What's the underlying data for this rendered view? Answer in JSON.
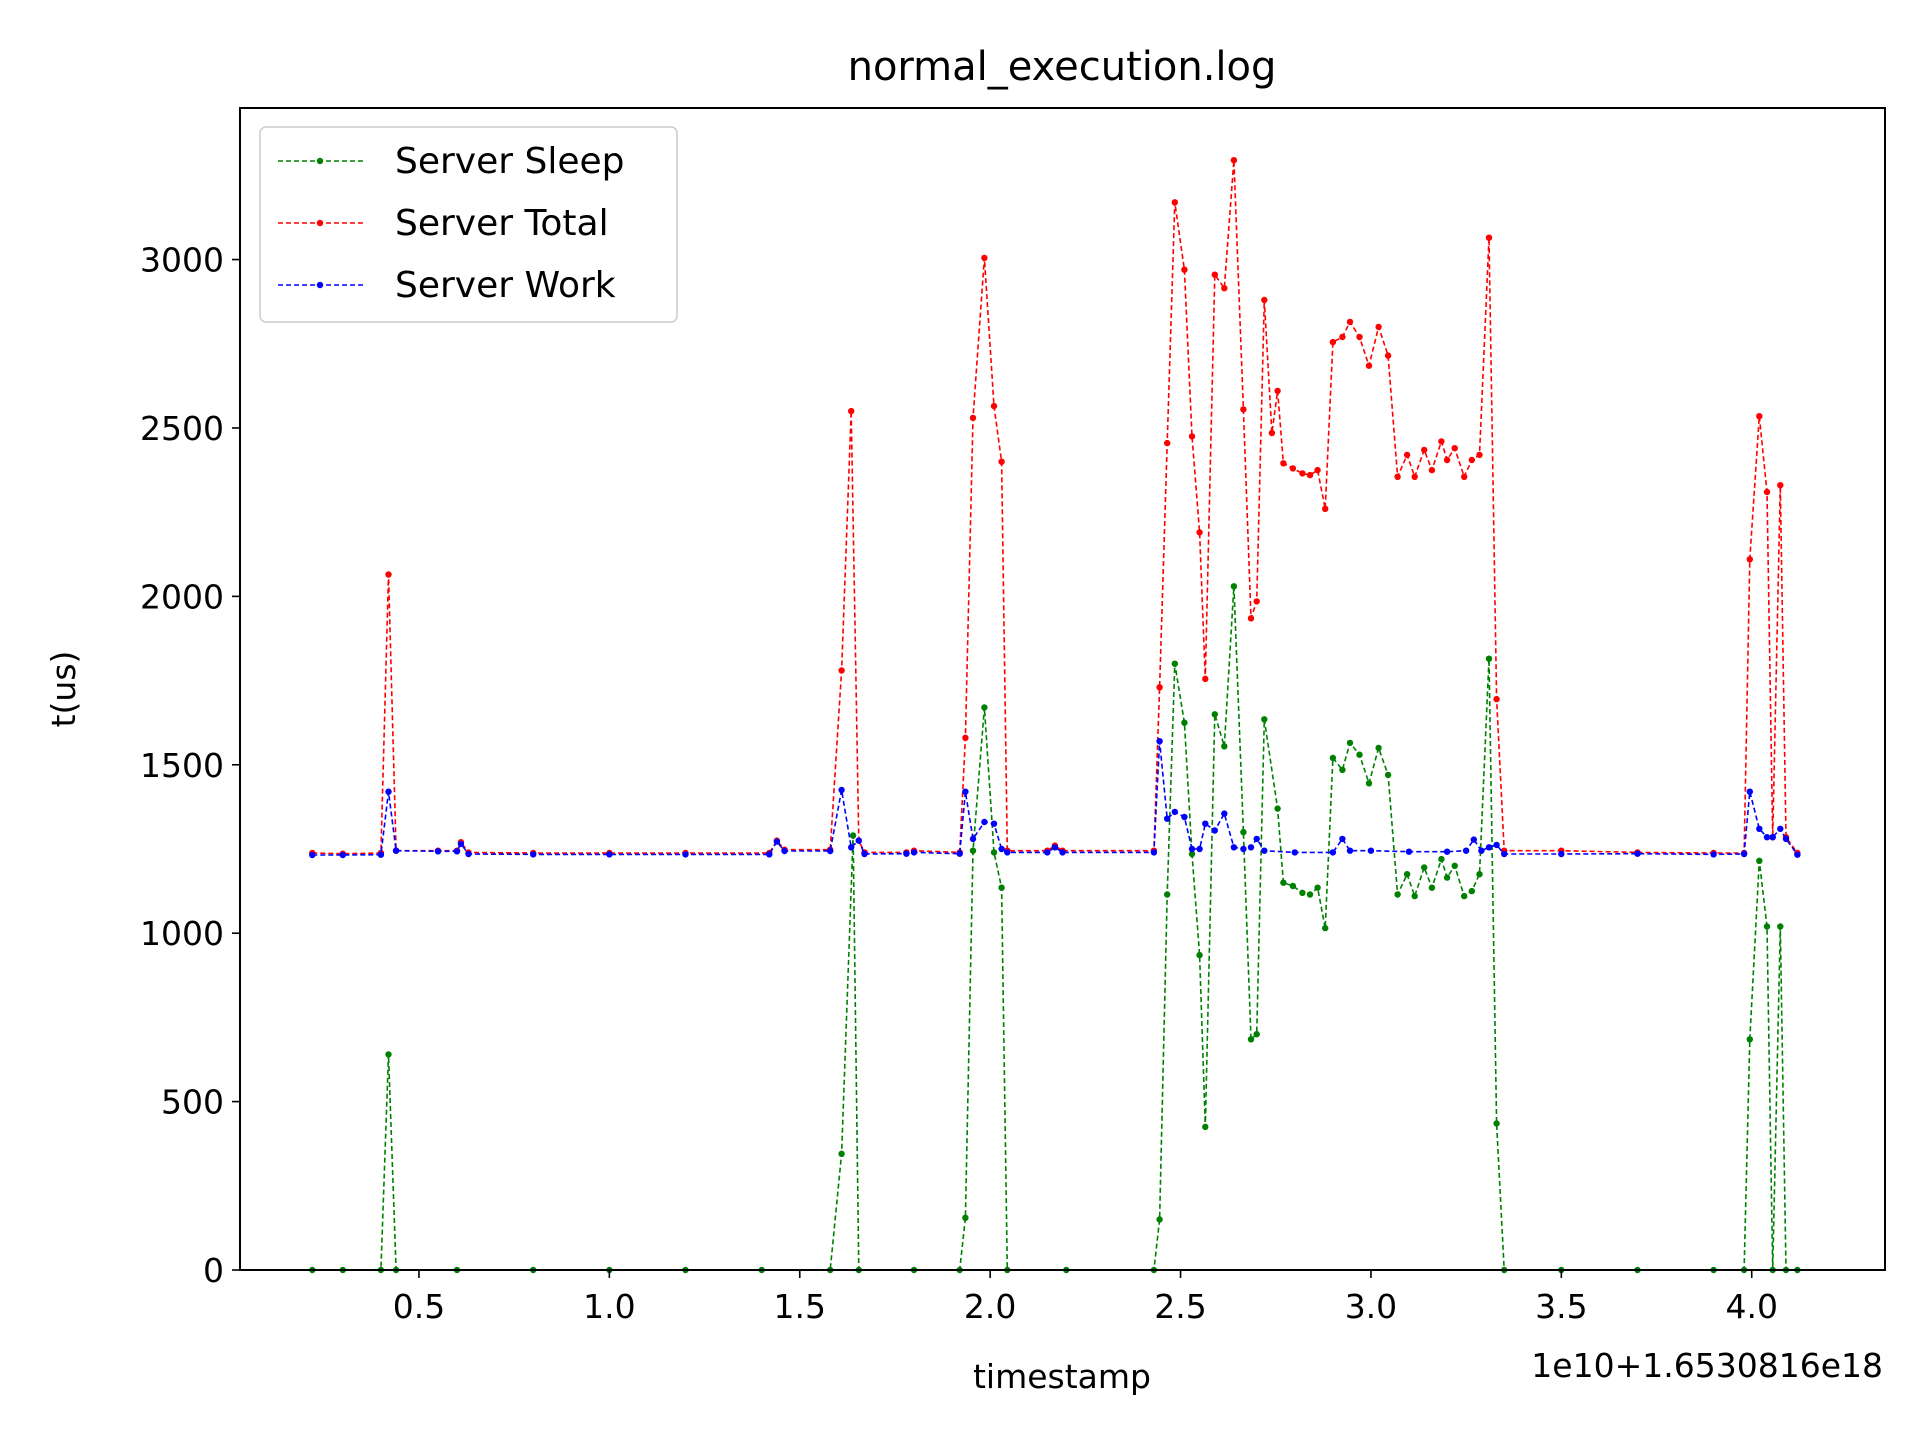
{
  "chart_data": {
    "type": "line",
    "title": "normal_execution.log",
    "xlabel": "timestamp",
    "ylabel": "t(us)",
    "x_offset_label": "1e10+1.6530816e18",
    "xlim": [
      0.03,
      4.35
    ],
    "ylim": [
      0,
      3450
    ],
    "x_ticks": [
      0.5,
      1.0,
      1.5,
      2.0,
      2.5,
      3.0,
      3.5,
      4.0
    ],
    "x_tick_labels": [
      "0.5",
      "1.0",
      "1.5",
      "2.0",
      "2.5",
      "3.0",
      "3.5",
      "4.0"
    ],
    "y_ticks": [
      0,
      500,
      1000,
      1500,
      2000,
      2500,
      3000
    ],
    "y_tick_labels": [
      "0",
      "500",
      "1000",
      "1500",
      "2000",
      "2500",
      "3000"
    ],
    "grid": false,
    "legend_position": "top-left",
    "series": [
      {
        "name": "Server Sleep",
        "color": "#008000",
        "line_style": "dashed",
        "points": [
          [
            0.22,
            0
          ],
          [
            0.3,
            0
          ],
          [
            0.4,
            0
          ],
          [
            0.42,
            640
          ],
          [
            0.44,
            0
          ],
          [
            0.6,
            0
          ],
          [
            0.8,
            0
          ],
          [
            1.0,
            0
          ],
          [
            1.2,
            0
          ],
          [
            1.4,
            0
          ],
          [
            1.58,
            0
          ],
          [
            1.61,
            345
          ],
          [
            1.64,
            1290
          ],
          [
            1.655,
            0
          ],
          [
            1.8,
            0
          ],
          [
            1.92,
            0
          ],
          [
            1.935,
            155
          ],
          [
            1.955,
            1245
          ],
          [
            1.985,
            1670
          ],
          [
            2.01,
            1240
          ],
          [
            2.03,
            1135
          ],
          [
            2.045,
            0
          ],
          [
            2.2,
            0
          ],
          [
            2.43,
            0
          ],
          [
            2.445,
            150
          ],
          [
            2.465,
            1115
          ],
          [
            2.485,
            1800
          ],
          [
            2.51,
            1625
          ],
          [
            2.53,
            1235
          ],
          [
            2.55,
            935
          ],
          [
            2.565,
            425
          ],
          [
            2.59,
            1650
          ],
          [
            2.615,
            1555
          ],
          [
            2.64,
            2030
          ],
          [
            2.665,
            1300
          ],
          [
            2.685,
            685
          ],
          [
            2.7,
            700
          ],
          [
            2.72,
            1635
          ],
          [
            2.755,
            1370
          ],
          [
            2.77,
            1150
          ],
          [
            2.795,
            1140
          ],
          [
            2.82,
            1120
          ],
          [
            2.84,
            1115
          ],
          [
            2.86,
            1135
          ],
          [
            2.88,
            1015
          ],
          [
            2.9,
            1520
          ],
          [
            2.925,
            1485
          ],
          [
            2.945,
            1565
          ],
          [
            2.97,
            1530
          ],
          [
            2.995,
            1445
          ],
          [
            3.02,
            1550
          ],
          [
            3.045,
            1470
          ],
          [
            3.07,
            1115
          ],
          [
            3.095,
            1175
          ],
          [
            3.115,
            1110
          ],
          [
            3.14,
            1195
          ],
          [
            3.16,
            1135
          ],
          [
            3.185,
            1220
          ],
          [
            3.2,
            1165
          ],
          [
            3.22,
            1200
          ],
          [
            3.245,
            1110
          ],
          [
            3.265,
            1125
          ],
          [
            3.285,
            1175
          ],
          [
            3.31,
            1815
          ],
          [
            3.33,
            435
          ],
          [
            3.35,
            0
          ],
          [
            3.5,
            0
          ],
          [
            3.7,
            0
          ],
          [
            3.9,
            0
          ],
          [
            3.98,
            0
          ],
          [
            3.995,
            685
          ],
          [
            4.02,
            1215
          ],
          [
            4.04,
            1020
          ],
          [
            4.055,
            0
          ],
          [
            4.075,
            1020
          ],
          [
            4.09,
            0
          ],
          [
            4.12,
            0
          ]
        ]
      },
      {
        "name": "Server Total",
        "color": "#ff0000",
        "line_style": "dashed",
        "points": [
          [
            0.22,
            1238
          ],
          [
            0.3,
            1236
          ],
          [
            0.4,
            1238
          ],
          [
            0.42,
            2065
          ],
          [
            0.44,
            1245
          ],
          [
            0.55,
            1245
          ],
          [
            0.6,
            1245
          ],
          [
            0.61,
            1270
          ],
          [
            0.63,
            1240
          ],
          [
            0.8,
            1238
          ],
          [
            1.0,
            1238
          ],
          [
            1.2,
            1238
          ],
          [
            1.42,
            1238
          ],
          [
            1.44,
            1275
          ],
          [
            1.46,
            1248
          ],
          [
            1.58,
            1248
          ],
          [
            1.61,
            1780
          ],
          [
            1.635,
            2550
          ],
          [
            1.655,
            1275
          ],
          [
            1.67,
            1240
          ],
          [
            1.78,
            1240
          ],
          [
            1.8,
            1245
          ],
          [
            1.92,
            1240
          ],
          [
            1.935,
            1580
          ],
          [
            1.955,
            2530
          ],
          [
            1.985,
            3005
          ],
          [
            2.01,
            2565
          ],
          [
            2.03,
            2400
          ],
          [
            2.045,
            1245
          ],
          [
            2.15,
            1245
          ],
          [
            2.17,
            1260
          ],
          [
            2.19,
            1245
          ],
          [
            2.43,
            1245
          ],
          [
            2.445,
            1730
          ],
          [
            2.465,
            2455
          ],
          [
            2.485,
            3170
          ],
          [
            2.51,
            2970
          ],
          [
            2.53,
            2475
          ],
          [
            2.55,
            2190
          ],
          [
            2.565,
            1755
          ],
          [
            2.59,
            2955
          ],
          [
            2.615,
            2915
          ],
          [
            2.64,
            3295
          ],
          [
            2.665,
            2555
          ],
          [
            2.685,
            1935
          ],
          [
            2.7,
            1985
          ],
          [
            2.72,
            2880
          ],
          [
            2.74,
            2485
          ],
          [
            2.755,
            2610
          ],
          [
            2.77,
            2395
          ],
          [
            2.795,
            2380
          ],
          [
            2.82,
            2365
          ],
          [
            2.84,
            2360
          ],
          [
            2.86,
            2375
          ],
          [
            2.88,
            2260
          ],
          [
            2.9,
            2755
          ],
          [
            2.925,
            2770
          ],
          [
            2.945,
            2815
          ],
          [
            2.97,
            2770
          ],
          [
            2.995,
            2685
          ],
          [
            3.02,
            2800
          ],
          [
            3.045,
            2715
          ],
          [
            3.07,
            2355
          ],
          [
            3.095,
            2420
          ],
          [
            3.115,
            2355
          ],
          [
            3.14,
            2435
          ],
          [
            3.16,
            2375
          ],
          [
            3.185,
            2460
          ],
          [
            3.2,
            2405
          ],
          [
            3.22,
            2440
          ],
          [
            3.245,
            2355
          ],
          [
            3.265,
            2405
          ],
          [
            3.285,
            2420
          ],
          [
            3.31,
            3065
          ],
          [
            3.33,
            1695
          ],
          [
            3.35,
            1245
          ],
          [
            3.5,
            1245
          ],
          [
            3.7,
            1240
          ],
          [
            3.9,
            1238
          ],
          [
            3.98,
            1238
          ],
          [
            3.995,
            2110
          ],
          [
            4.02,
            2535
          ],
          [
            4.04,
            2310
          ],
          [
            4.055,
            1285
          ],
          [
            4.075,
            2330
          ],
          [
            4.09,
            1285
          ],
          [
            4.12,
            1238
          ]
        ]
      },
      {
        "name": "Server Work",
        "color": "#0000ff",
        "line_style": "dashed",
        "points": [
          [
            0.22,
            1232
          ],
          [
            0.3,
            1232
          ],
          [
            0.4,
            1233
          ],
          [
            0.42,
            1420
          ],
          [
            0.44,
            1245
          ],
          [
            0.55,
            1243
          ],
          [
            0.6,
            1243
          ],
          [
            0.61,
            1265
          ],
          [
            0.63,
            1235
          ],
          [
            0.8,
            1234
          ],
          [
            1.0,
            1234
          ],
          [
            1.2,
            1234
          ],
          [
            1.42,
            1234
          ],
          [
            1.44,
            1272
          ],
          [
            1.46,
            1244
          ],
          [
            1.58,
            1244
          ],
          [
            1.61,
            1425
          ],
          [
            1.635,
            1255
          ],
          [
            1.655,
            1275
          ],
          [
            1.67,
            1235
          ],
          [
            1.78,
            1236
          ],
          [
            1.8,
            1240
          ],
          [
            1.92,
            1236
          ],
          [
            1.935,
            1420
          ],
          [
            1.955,
            1280
          ],
          [
            1.985,
            1330
          ],
          [
            2.01,
            1325
          ],
          [
            2.03,
            1250
          ],
          [
            2.045,
            1240
          ],
          [
            2.15,
            1240
          ],
          [
            2.17,
            1255
          ],
          [
            2.19,
            1240
          ],
          [
            2.43,
            1240
          ],
          [
            2.445,
            1570
          ],
          [
            2.465,
            1340
          ],
          [
            2.485,
            1360
          ],
          [
            2.51,
            1345
          ],
          [
            2.53,
            1250
          ],
          [
            2.55,
            1250
          ],
          [
            2.565,
            1325
          ],
          [
            2.59,
            1305
          ],
          [
            2.615,
            1355
          ],
          [
            2.64,
            1255
          ],
          [
            2.665,
            1250
          ],
          [
            2.685,
            1255
          ],
          [
            2.7,
            1280
          ],
          [
            2.72,
            1245
          ],
          [
            2.8,
            1240
          ],
          [
            2.9,
            1240
          ],
          [
            2.925,
            1280
          ],
          [
            2.945,
            1245
          ],
          [
            3.0,
            1245
          ],
          [
            3.1,
            1242
          ],
          [
            3.2,
            1242
          ],
          [
            3.25,
            1245
          ],
          [
            3.27,
            1278
          ],
          [
            3.29,
            1245
          ],
          [
            3.31,
            1255
          ],
          [
            3.33,
            1262
          ],
          [
            3.35,
            1235
          ],
          [
            3.5,
            1235
          ],
          [
            3.7,
            1236
          ],
          [
            3.9,
            1234
          ],
          [
            3.98,
            1235
          ],
          [
            3.995,
            1420
          ],
          [
            4.02,
            1310
          ],
          [
            4.04,
            1285
          ],
          [
            4.055,
            1285
          ],
          [
            4.075,
            1310
          ],
          [
            4.09,
            1280
          ],
          [
            4.12,
            1233
          ]
        ]
      }
    ]
  }
}
